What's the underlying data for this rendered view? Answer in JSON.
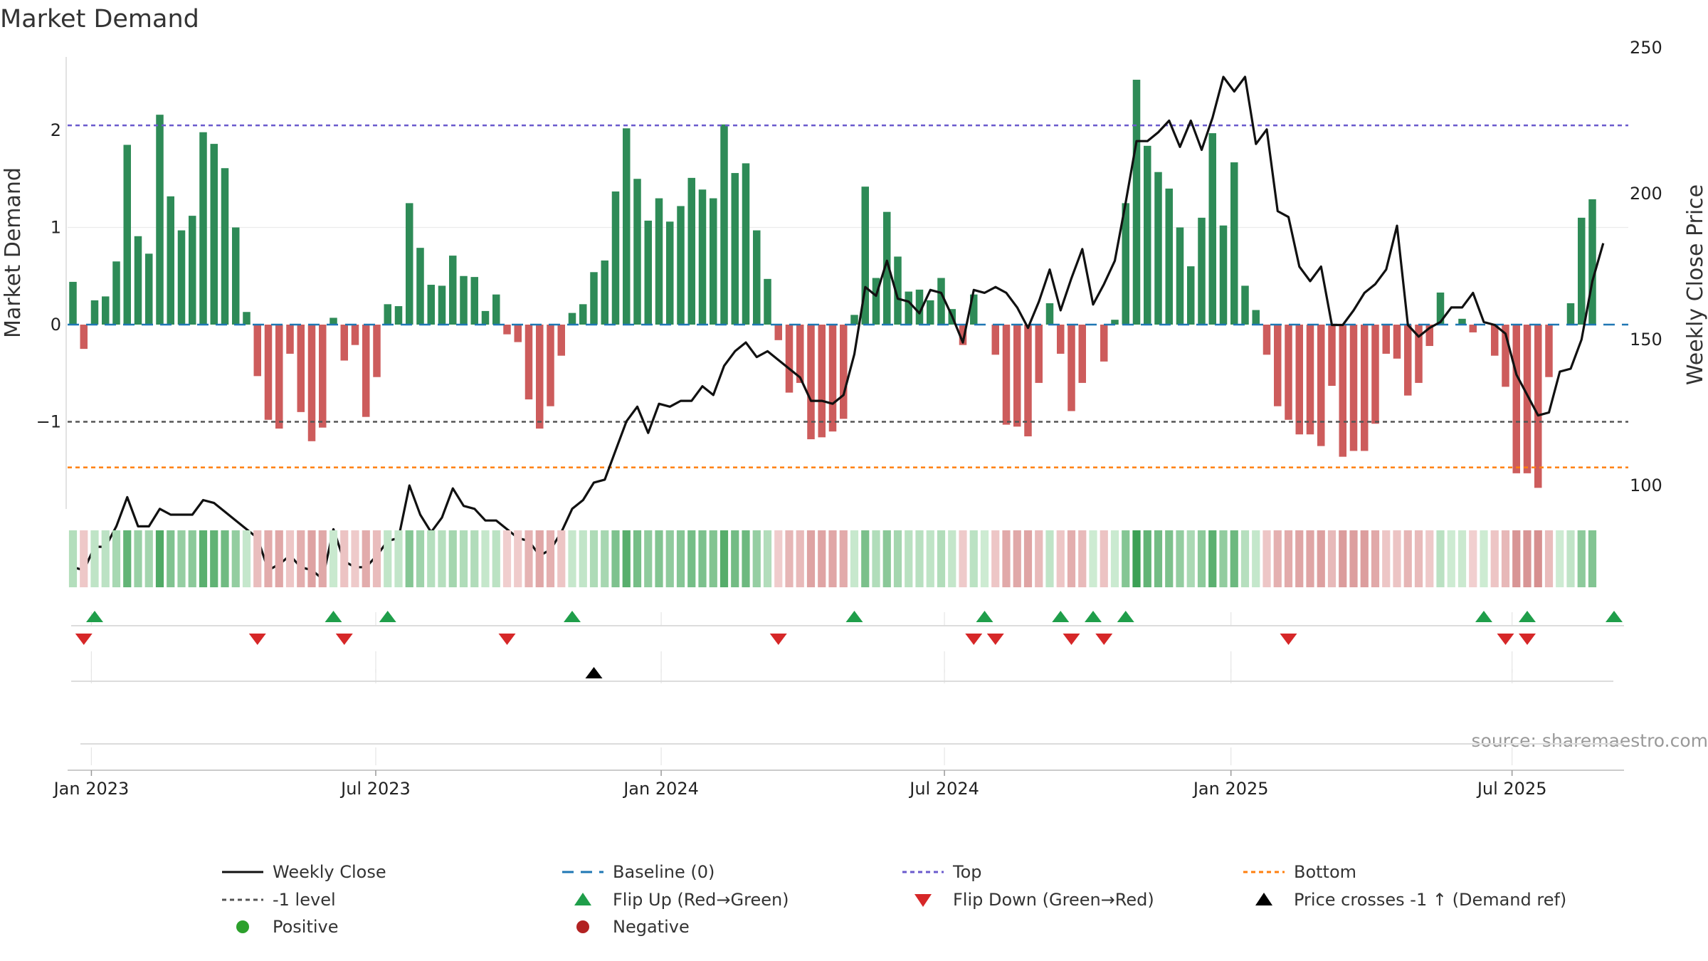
{
  "colors": {
    "positive_bar": "#2e8b57",
    "negative_bar": "#cd5c5c",
    "price_line": "#111111",
    "baseline": "#1f77b4",
    "top_line": "#6a5acd",
    "bottom_line": "#ff7f0e",
    "minus1_line": "#555555",
    "flip_up": "#1f9e4a",
    "flip_down": "#d62728",
    "cross_marker": "#000000",
    "positive_dot": "#2ca02c",
    "negative_dot": "#b22222"
  },
  "chart_data": {
    "type": "bar",
    "title": "Market Demand",
    "ylabel": "Market Demand",
    "y2label": "Weekly Close Price",
    "source": "source: sharemaestro.com",
    "ylim": [
      -1.9,
      2.7
    ],
    "y2lim": [
      67,
      250
    ],
    "yticks": [
      {
        "v": 2,
        "t": "2"
      },
      {
        "v": 1,
        "t": "1"
      },
      {
        "v": 0,
        "t": "0"
      },
      {
        "v": -1,
        "t": "−1"
      }
    ],
    "y2ticks": [
      {
        "v": 250,
        "t": "250"
      },
      {
        "v": 200,
        "t": "200"
      },
      {
        "v": 150,
        "t": "150"
      },
      {
        "v": 100,
        "t": "100"
      }
    ],
    "top_level": 2.05,
    "bottom_level": -1.47,
    "minus1_level": -1,
    "n_weeks": 146,
    "x_ticks": [
      {
        "week": 1.7,
        "label": "Jan 2023"
      },
      {
        "week": 27.9,
        "label": "Jul 2023"
      },
      {
        "week": 54.2,
        "label": "Jan 2024"
      },
      {
        "week": 80.3,
        "label": "Jul 2024"
      },
      {
        "week": 106.7,
        "label": "Jan 2025"
      },
      {
        "week": 132.6,
        "label": "Jul 2025"
      }
    ],
    "demand": [
      0.44,
      -0.25,
      0.25,
      0.29,
      0.65,
      1.85,
      0.91,
      0.73,
      2.16,
      1.32,
      0.97,
      1.12,
      1.98,
      1.86,
      1.61,
      1.0,
      0.13,
      -0.53,
      -0.98,
      -1.07,
      -0.3,
      -0.9,
      -1.2,
      -1.06,
      0.07,
      -0.37,
      -0.21,
      -0.95,
      -0.54,
      0.21,
      0.19,
      1.25,
      0.79,
      0.41,
      0.4,
      0.71,
      0.5,
      0.49,
      0.14,
      0.31,
      -0.1,
      -0.18,
      -0.77,
      -1.07,
      -0.84,
      -0.32,
      0.12,
      0.21,
      0.54,
      0.66,
      1.37,
      2.02,
      1.5,
      1.07,
      1.3,
      1.06,
      1.22,
      1.51,
      1.39,
      1.3,
      2.06,
      1.56,
      1.66,
      0.97,
      0.47,
      -0.16,
      -0.7,
      -0.6,
      -1.18,
      -1.16,
      -1.1,
      -0.97,
      0.1,
      1.42,
      0.48,
      1.16,
      0.7,
      0.34,
      0.36,
      0.25,
      0.48,
      0.16,
      -0.21,
      0.31,
      0.0,
      -0.31,
      -1.03,
      -1.05,
      -1.15,
      -0.6,
      0.22,
      -0.3,
      -0.89,
      -0.6,
      0.0,
      -0.38,
      0.05,
      1.25,
      2.52,
      1.84,
      1.57,
      1.4,
      1.0,
      0.6,
      1.1,
      1.97,
      1.02,
      1.67,
      0.4,
      0.15,
      -0.31,
      -0.84,
      -0.98,
      -1.13,
      -1.13,
      -1.25,
      -0.63,
      -1.36,
      -1.3,
      -1.3,
      -1.02,
      -0.3,
      -0.35,
      -0.73,
      -0.6,
      -0.22,
      0.33,
      0.0,
      0.06,
      -0.08,
      0.0,
      -0.32,
      -0.64,
      -1.53,
      -1.53,
      -1.68,
      -0.54,
      0.0,
      0.22,
      1.1,
      1.29
    ],
    "price": [
      72,
      71,
      79,
      79,
      86,
      96,
      86,
      86,
      92,
      90,
      90,
      90,
      95,
      94,
      91,
      88,
      85,
      82,
      71,
      73,
      76,
      72,
      71,
      68,
      85,
      74,
      72,
      72,
      76,
      81,
      82,
      100,
      90,
      84,
      89,
      99,
      93,
      92,
      88,
      88,
      85,
      82,
      81,
      76,
      78,
      84,
      92,
      95,
      101,
      102,
      112,
      122,
      127,
      118,
      128,
      127,
      129,
      129,
      134,
      131,
      141,
      146,
      149,
      144,
      146,
      143,
      140,
      137,
      129,
      129,
      128,
      131,
      145,
      168,
      165,
      177,
      164,
      163,
      159,
      167,
      166,
      158,
      149,
      167,
      166,
      168,
      166,
      161,
      154,
      163,
      174,
      160,
      171,
      181,
      162,
      169,
      177,
      197,
      218,
      218,
      221,
      225,
      216,
      225,
      215,
      226,
      240,
      235,
      240,
      217,
      222,
      194,
      192,
      175,
      170,
      175,
      155,
      155,
      160,
      166,
      169,
      174,
      189,
      155,
      151,
      154,
      156,
      161,
      161,
      166,
      156,
      155,
      152,
      138,
      131,
      124,
      125,
      139,
      140,
      150,
      170,
      183
    ],
    "flip_up_weeks": [
      2,
      24,
      29,
      46,
      72,
      84,
      91,
      94,
      97,
      130,
      134,
      142
    ],
    "flip_down_weeks": [
      1,
      17,
      25,
      40,
      65,
      83,
      85,
      92,
      95,
      112,
      132,
      134
    ],
    "price_cross_weeks": [
      48
    ],
    "legend": [
      {
        "key": "line-black",
        "label": "Weekly Close"
      },
      {
        "key": "line-baseline",
        "label": "Baseline (0)"
      },
      {
        "key": "line-top",
        "label": "Top"
      },
      {
        "key": "line-bottom",
        "label": "Bottom"
      },
      {
        "key": "line-minus1",
        "label": "-1 level"
      },
      {
        "key": "tri-up-green",
        "label": "Flip Up (Red→Green)"
      },
      {
        "key": "tri-down-red",
        "label": "Flip Down (Green→Red)"
      },
      {
        "key": "tri-up-black",
        "label": "Price crosses -1 ↑ (Demand ref)"
      },
      {
        "key": "dot-green",
        "label": "Positive"
      },
      {
        "key": "dot-red",
        "label": "Negative"
      }
    ]
  }
}
